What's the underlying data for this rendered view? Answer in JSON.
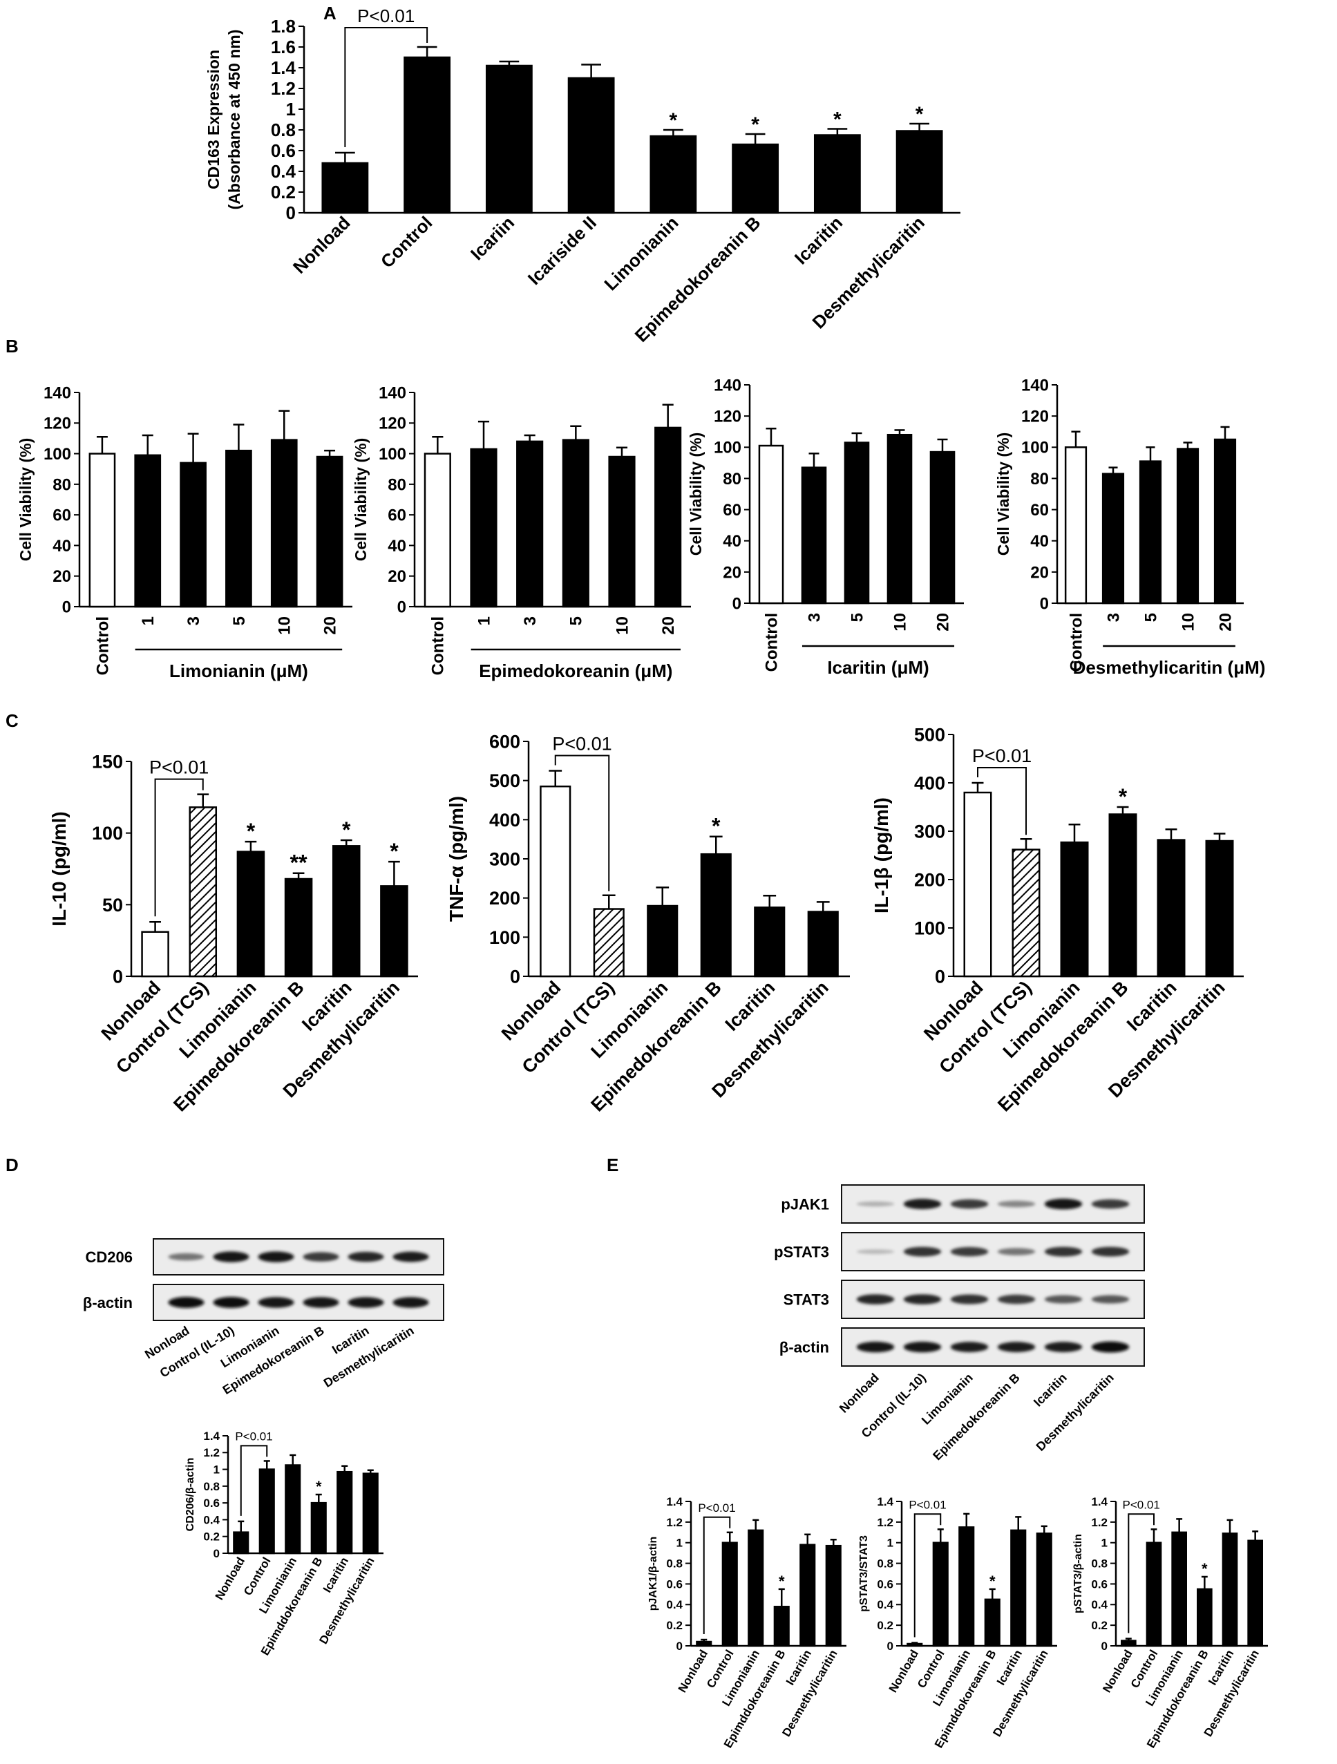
{
  "panel_labels": [
    "A",
    "B",
    "C",
    "D",
    "E"
  ],
  "chart_data": [
    {
      "id": "A",
      "type": "bar",
      "title": "",
      "ylabel": "CD163 Expression (Absorbance at 450 nm)",
      "ylabel_lines": [
        "CD163 Expression",
        "(Absorbance at 450 nm)"
      ],
      "xlabel": "",
      "ylim": [
        0,
        1.8
      ],
      "yticks": [
        "0",
        "0.2",
        "0.4",
        "0.6",
        "0.8",
        "1",
        "1.2",
        "1.4",
        "1.6",
        "1.8"
      ],
      "categories": [
        "Nonload",
        "Control",
        "Icariin",
        "Icariside II",
        "Limonianin",
        "Epimedokoreanin B",
        "Icaritin",
        "Desmethylicaritin"
      ],
      "values": [
        0.48,
        1.5,
        1.42,
        1.3,
        0.74,
        0.66,
        0.75,
        0.79
      ],
      "errors": [
        0.1,
        0.1,
        0.04,
        0.13,
        0.06,
        0.1,
        0.06,
        0.07
      ],
      "stars": [
        "",
        "",
        "",
        "",
        "*",
        "*",
        "*",
        "*"
      ],
      "fills": [
        "solid",
        "solid",
        "solid",
        "solid",
        "solid",
        "solid",
        "solid",
        "solid"
      ],
      "bracket": {
        "text": "P<0.01",
        "from": 0,
        "to": 1
      }
    },
    {
      "id": "B1",
      "type": "bar",
      "ylabel": "Cell Viability (%)",
      "ylim": [
        0,
        140
      ],
      "yticks": [
        "0",
        "20",
        "40",
        "60",
        "80",
        "100",
        "120",
        "140"
      ],
      "categories": [
        "Control",
        "1",
        "3",
        "5",
        "10",
        "20"
      ],
      "values": [
        100,
        99,
        94,
        102,
        109,
        98
      ],
      "errors": [
        11,
        13,
        19,
        17,
        19,
        4
      ],
      "fills": [
        "white",
        "solid",
        "solid",
        "solid",
        "solid",
        "solid"
      ],
      "group_label": "Limonianin (μM)"
    },
    {
      "id": "B2",
      "type": "bar",
      "ylabel": "Cell Viability (%)",
      "ylim": [
        0,
        140
      ],
      "yticks": [
        "0",
        "20",
        "40",
        "60",
        "80",
        "100",
        "120",
        "140"
      ],
      "categories": [
        "Control",
        "1",
        "3",
        "5",
        "10",
        "20"
      ],
      "values": [
        100,
        103,
        108,
        109,
        98,
        117
      ],
      "errors": [
        11,
        18,
        4,
        9,
        6,
        15
      ],
      "fills": [
        "white",
        "solid",
        "solid",
        "solid",
        "solid",
        "solid"
      ],
      "group_label": "Epimedokoreanin (μM)"
    },
    {
      "id": "B3",
      "type": "bar",
      "ylabel": "Cell Viability (%)",
      "ylim": [
        0,
        140
      ],
      "yticks": [
        "0",
        "20",
        "40",
        "60",
        "80",
        "100",
        "120",
        "140"
      ],
      "categories": [
        "Control",
        "3",
        "5",
        "10",
        "20"
      ],
      "values": [
        101,
        87,
        103,
        108,
        97
      ],
      "errors": [
        11,
        9,
        6,
        3,
        8
      ],
      "fills": [
        "white",
        "solid",
        "solid",
        "solid",
        "solid"
      ],
      "group_label": "Icaritin (μM)"
    },
    {
      "id": "B4",
      "type": "bar",
      "ylabel": "Cell Viability (%)",
      "ylim": [
        0,
        140
      ],
      "yticks": [
        "0",
        "20",
        "40",
        "60",
        "80",
        "100",
        "120",
        "140"
      ],
      "categories": [
        "Control",
        "3",
        "5",
        "10",
        "20"
      ],
      "values": [
        100,
        83,
        91,
        99,
        105
      ],
      "errors": [
        10,
        4,
        9,
        4,
        8
      ],
      "fills": [
        "white",
        "solid",
        "solid",
        "solid",
        "solid"
      ],
      "group_label": "Desmethylicaritin (μM)"
    },
    {
      "id": "C1",
      "type": "bar",
      "ylabel": "IL-10 (pg/ml)",
      "ylim": [
        0,
        150
      ],
      "yticks": [
        "0",
        "50",
        "100",
        "150"
      ],
      "categories": [
        "Nonload",
        "Control (TCS)",
        "Limonianin",
        "Epimedokoreanin B",
        "Icaritin",
        "Desmethylicaritin"
      ],
      "values": [
        31,
        118,
        87,
        68,
        91,
        63
      ],
      "errors": [
        7,
        9,
        7,
        4,
        4,
        17
      ],
      "stars": [
        "",
        "",
        "*",
        "**",
        "*",
        "*"
      ],
      "fills": [
        "white",
        "hatch",
        "solid",
        "solid",
        "solid",
        "solid"
      ],
      "bracket": {
        "text": "P<0.01",
        "from": 0,
        "to": 1
      }
    },
    {
      "id": "C2",
      "type": "bar",
      "ylabel": "TNF-α (pg/ml)",
      "ylim": [
        0,
        600
      ],
      "yticks": [
        "0",
        "100",
        "200",
        "300",
        "400",
        "500",
        "600"
      ],
      "categories": [
        "Nonload",
        "Control (TCS)",
        "Limonianin",
        "Epimedokoreanin B",
        "Icaritin",
        "Desmethylicaritin"
      ],
      "values": [
        485,
        172,
        180,
        312,
        176,
        165
      ],
      "errors": [
        40,
        35,
        47,
        45,
        30,
        25
      ],
      "stars": [
        "",
        "",
        "",
        "*",
        "",
        ""
      ],
      "fills": [
        "white",
        "hatch",
        "solid",
        "solid",
        "solid",
        "solid"
      ],
      "bracket": {
        "text": "P<0.01",
        "from": 0,
        "to": 1
      }
    },
    {
      "id": "C3",
      "type": "bar",
      "ylabel": "IL-1β (pg/ml)",
      "ylim": [
        0,
        500
      ],
      "yticks": [
        "0",
        "100",
        "200",
        "300",
        "400",
        "500"
      ],
      "categories": [
        "Nonload",
        "Control (TCS)",
        "Limonianin",
        "Epimedokoreanin B",
        "Icaritin",
        "Desmethylicaritin"
      ],
      "values": [
        380,
        262,
        277,
        335,
        282,
        280
      ],
      "errors": [
        20,
        22,
        37,
        15,
        22,
        15
      ],
      "stars": [
        "",
        "",
        "",
        "*",
        "",
        ""
      ],
      "fills": [
        "white",
        "hatch",
        "solid",
        "solid",
        "solid",
        "solid"
      ],
      "bracket": {
        "text": "P<0.01",
        "from": 0,
        "to": 1
      }
    },
    {
      "id": "D",
      "type": "bar",
      "ylabel": "CD206/β-actin",
      "ylim": [
        0,
        1.4
      ],
      "yticks": [
        "0",
        "0.2",
        "0.4",
        "0.6",
        "0.8",
        "1",
        "1.2",
        "1.4"
      ],
      "categories": [
        "Nonload",
        "Control",
        "Limonianin",
        "Epimddokoreanin B",
        "Icaritin",
        "Desmethylicaritin"
      ],
      "values": [
        0.25,
        1.0,
        1.05,
        0.6,
        0.97,
        0.95
      ],
      "errors": [
        0.13,
        0.1,
        0.12,
        0.1,
        0.07,
        0.04
      ],
      "stars": [
        "",
        "",
        "",
        "*",
        "",
        ""
      ],
      "fills": [
        "solid",
        "solid",
        "solid",
        "solid",
        "solid",
        "solid"
      ],
      "bracket": {
        "text": "P<0.01",
        "from": 0,
        "to": 1
      }
    },
    {
      "id": "E1",
      "type": "bar",
      "ylabel": "pJAK1/β-actin",
      "ylim": [
        0,
        1.4
      ],
      "yticks": [
        "0",
        "0.2",
        "0.4",
        "0.6",
        "0.8",
        "1",
        "1.2",
        "1.4"
      ],
      "categories": [
        "Nonload",
        "Control",
        "Limonianin",
        "Epimddokoreanin B",
        "Icaritin",
        "Desmethylicaritin"
      ],
      "values": [
        0.04,
        1.0,
        1.12,
        0.38,
        0.98,
        0.97
      ],
      "errors": [
        0.02,
        0.1,
        0.1,
        0.17,
        0.1,
        0.06
      ],
      "stars": [
        "",
        "",
        "",
        "*",
        "",
        ""
      ],
      "fills": [
        "solid",
        "solid",
        "solid",
        "solid",
        "solid",
        "solid"
      ],
      "bracket": {
        "text": "P<0.01",
        "from": 0,
        "to": 1
      }
    },
    {
      "id": "E2",
      "type": "bar",
      "ylabel": "pSTAT3/STAT3",
      "ylim": [
        0,
        1.4
      ],
      "yticks": [
        "0",
        "0.2",
        "0.4",
        "0.6",
        "0.8",
        "1",
        "1.2",
        "1.4"
      ],
      "categories": [
        "Nonload",
        "Control",
        "Limonianin",
        "Epimddokoreanin B",
        "Icaritin",
        "Desmethylicaritin"
      ],
      "values": [
        0.02,
        1.0,
        1.15,
        0.45,
        1.12,
        1.09
      ],
      "errors": [
        0.01,
        0.13,
        0.13,
        0.1,
        0.13,
        0.07
      ],
      "stars": [
        "",
        "",
        "",
        "*",
        "",
        ""
      ],
      "fills": [
        "solid",
        "solid",
        "solid",
        "solid",
        "solid",
        "solid"
      ],
      "bracket": {
        "text": "P<0.01",
        "from": 0,
        "to": 1
      }
    },
    {
      "id": "E3",
      "type": "bar",
      "ylabel": "pSTAT3/β-actin",
      "ylim": [
        0,
        1.4
      ],
      "yticks": [
        "0",
        "0.2",
        "0.4",
        "0.6",
        "0.8",
        "1",
        "1.2",
        "1.4"
      ],
      "categories": [
        "Nonload",
        "Control",
        "Limonianin",
        "Epimddokoreanin B",
        "Icaritin",
        "Desmethylicaritin"
      ],
      "values": [
        0.05,
        1.0,
        1.1,
        0.55,
        1.09,
        1.02
      ],
      "errors": [
        0.02,
        0.13,
        0.13,
        0.12,
        0.13,
        0.09
      ],
      "stars": [
        "",
        "",
        "",
        "*",
        "",
        ""
      ],
      "fills": [
        "solid",
        "solid",
        "solid",
        "solid",
        "solid",
        "solid"
      ],
      "bracket": {
        "text": "P<0.01",
        "from": 0,
        "to": 1
      }
    }
  ],
  "blots": {
    "D": {
      "rows": [
        "CD206",
        "β-actin"
      ],
      "lanes": [
        "Nonload",
        "Control (IL-10)",
        "Limonianin",
        "Epimedokoreanin B",
        "Icaritin",
        "Desmethylicaritin"
      ],
      "intensity": [
        [
          0.45,
          0.95,
          0.95,
          0.75,
          0.85,
          0.9
        ],
        [
          1,
          1,
          0.95,
          0.95,
          0.95,
          0.95
        ]
      ]
    },
    "E": {
      "rows": [
        "pJAK1",
        "pSTAT3",
        "STAT3",
        "β-actin"
      ],
      "lanes": [
        "Nonload",
        "Control (IL-10)",
        "Limonianin",
        "Epimedokoreanin B",
        "Icaritin",
        "Desmethylicaritin"
      ],
      "intensity": [
        [
          0.12,
          0.9,
          0.75,
          0.35,
          0.95,
          0.75
        ],
        [
          0.08,
          0.8,
          0.75,
          0.45,
          0.8,
          0.8
        ],
        [
          0.85,
          0.85,
          0.8,
          0.75,
          0.6,
          0.6
        ],
        [
          0.95,
          0.95,
          0.9,
          0.9,
          0.9,
          1
        ]
      ]
    }
  }
}
